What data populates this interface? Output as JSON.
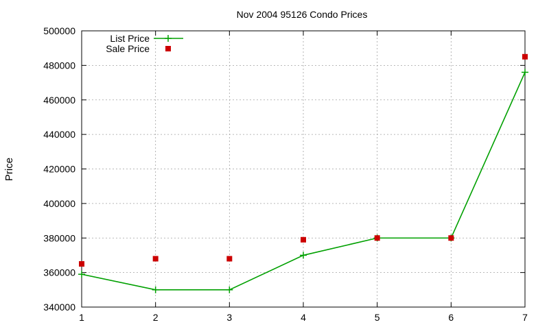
{
  "chart_data": {
    "type": "line",
    "title": "Nov 2004 95126 Condo Prices",
    "xlabel": "",
    "ylabel": "Price",
    "xlim": [
      1,
      7
    ],
    "ylim": [
      340000,
      500000
    ],
    "x_ticks": [
      1,
      2,
      3,
      4,
      5,
      6,
      7
    ],
    "y_ticks": [
      340000,
      360000,
      380000,
      400000,
      420000,
      440000,
      460000,
      480000,
      500000
    ],
    "grid": true,
    "legend_position": "top-left",
    "series": [
      {
        "name": "List Price",
        "style": "line-with-plus-markers",
        "color": "#00a000",
        "x": [
          1,
          2,
          3,
          4,
          5,
          6,
          7
        ],
        "y": [
          359000,
          350000,
          350000,
          370000,
          380000,
          380000,
          476000
        ]
      },
      {
        "name": "Sale Price",
        "style": "square-markers",
        "color": "#cc0000",
        "x": [
          1,
          2,
          3,
          4,
          5,
          6,
          7
        ],
        "y": [
          365000,
          368000,
          368000,
          379000,
          380000,
          380000,
          485000
        ]
      }
    ]
  }
}
